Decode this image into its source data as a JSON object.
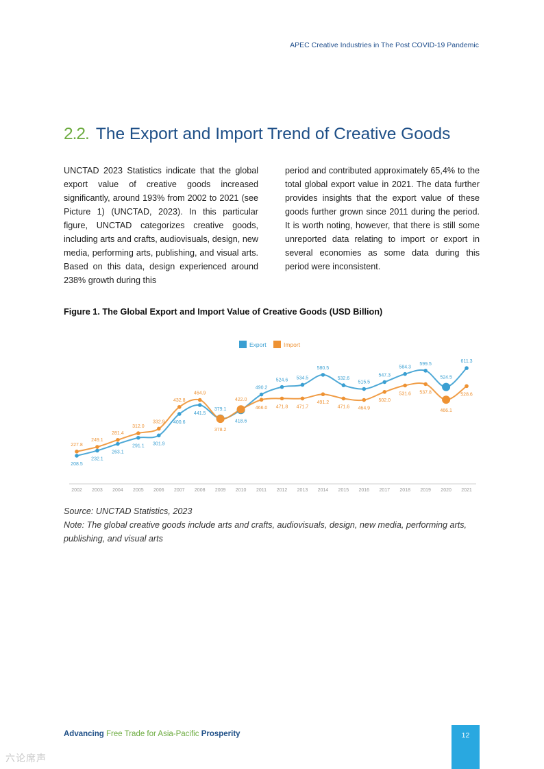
{
  "header": {
    "running_title": "APEC Creative Industries in The Post COVID-19 Pandemic"
  },
  "section": {
    "number": "2.2.",
    "title": "The Export and Import Trend of Creative Goods"
  },
  "body": {
    "left": "UNCTAD 2023 Statistics indicate that the global export value of creative goods increased significantly, around 193% from 2002 to 2021 (see Picture 1) (UNCTAD, 2023). In this particular figure, UNCTAD categorizes creative goods, including arts and crafts, audiovisuals, design, new media, performing arts, publishing, and visual arts. Based on this data, design experienced around 238% growth during this",
    "right": "period and contributed approximately 65,4% to the total global export value in 2021. The data further provides insights that the export value of these goods further grown since 2011 during the period. It is worth noting, however, that there is still some unreported data relating to import or export in several economies as some data during this period were inconsistent."
  },
  "figure": {
    "title": "Figure 1. The Global Export and Import Value of Creative Goods (USD Billion)"
  },
  "chart_data": {
    "type": "line",
    "title": "",
    "xlabel": "",
    "ylabel": "",
    "categories": [
      "2002",
      "2003",
      "2004",
      "2005",
      "2006",
      "2007",
      "2008",
      "2009",
      "2010",
      "2011",
      "2012",
      "2013",
      "2014",
      "2015",
      "2016",
      "2017",
      "2018",
      "2019",
      "2020",
      "2021"
    ],
    "series": [
      {
        "name": "Export",
        "color": "#3a9fd2",
        "values": [
          208.5,
          232.1,
          263.1,
          291.1,
          301.9,
          400.6,
          441.5,
          379.1,
          418.6,
          490.2,
          524.6,
          534.5,
          580.5,
          532.6,
          515.5,
          547.3,
          584.3,
          599.5,
          524.5,
          611.3
        ]
      },
      {
        "name": "Import",
        "color": "#ee9233",
        "values": [
          227.8,
          249.1,
          281.4,
          312.0,
          332.9,
          432.8,
          464.9,
          378.2,
          422.0,
          466.0,
          471.8,
          471.7,
          491.2,
          471.6,
          464.9,
          502.0,
          531.6,
          537.8,
          466.1,
          528.6
        ]
      }
    ],
    "legend": [
      "Export",
      "Import"
    ],
    "legend_position": "top-center",
    "highlighted_years": [
      "2009",
      "2010",
      "2020"
    ],
    "ylim": [
      180,
      640
    ],
    "grid": false
  },
  "source": {
    "line": "Source: UNCTAD Statistics, 2023",
    "note": "Note: The global creative goods include arts and crafts, audiovisuals, design, new media, performing arts, publishing, and visual arts"
  },
  "footer": {
    "tagline_start": "Advancing",
    "tagline_mid": " Free Trade for Asia-Pacific ",
    "tagline_end": "Prosperity",
    "page_number": "12"
  },
  "watermark": "六论席声"
}
